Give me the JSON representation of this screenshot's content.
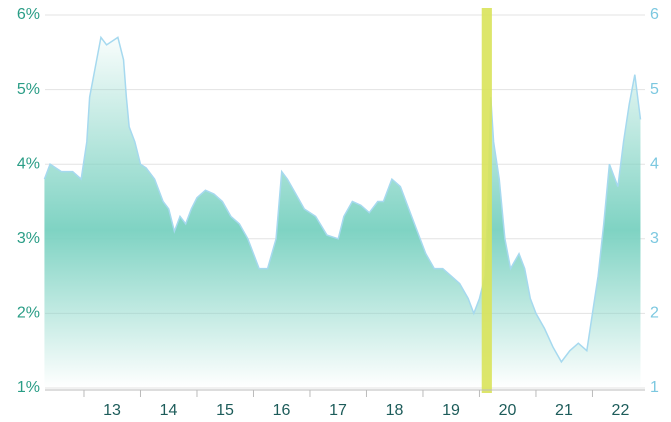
{
  "chart_data": {
    "type": "area",
    "x": [
      2012.3,
      2012.4,
      2012.6,
      2012.8,
      2012.95,
      2013.05,
      2013.1,
      2013.2,
      2013.3,
      2013.4,
      2013.5,
      2013.6,
      2013.7,
      2013.75,
      2013.8,
      2013.9,
      2014.0,
      2014.1,
      2014.25,
      2014.4,
      2014.5,
      2014.6,
      2014.7,
      2014.8,
      2014.9,
      2015.0,
      2015.15,
      2015.3,
      2015.45,
      2015.6,
      2015.75,
      2015.9,
      2016.0,
      2016.1,
      2016.25,
      2016.4,
      2016.5,
      2016.6,
      2016.75,
      2016.9,
      2017.1,
      2017.3,
      2017.5,
      2017.6,
      2017.75,
      2017.9,
      2018.05,
      2018.2,
      2018.3,
      2018.45,
      2018.6,
      2018.75,
      2018.9,
      2019.05,
      2019.2,
      2019.35,
      2019.5,
      2019.65,
      2019.8,
      2019.9,
      2020.0,
      2020.1,
      2020.15,
      2020.2,
      2020.25,
      2020.35,
      2020.45,
      2020.55,
      2020.7,
      2020.8,
      2020.9,
      2021.0,
      2021.15,
      2021.3,
      2021.45,
      2021.6,
      2021.75,
      2021.9,
      2022.0,
      2022.1,
      2022.2,
      2022.3,
      2022.45,
      2022.55,
      2022.65,
      2022.75,
      2022.85
    ],
    "values": [
      3.8,
      4.0,
      3.9,
      3.9,
      3.8,
      4.3,
      4.9,
      5.3,
      5.7,
      5.6,
      5.65,
      5.7,
      5.4,
      4.9,
      4.5,
      4.3,
      4.0,
      3.95,
      3.8,
      3.5,
      3.4,
      3.1,
      3.3,
      3.2,
      3.4,
      3.55,
      3.65,
      3.6,
      3.5,
      3.3,
      3.2,
      3.0,
      2.8,
      2.6,
      2.6,
      3.0,
      3.9,
      3.8,
      3.6,
      3.4,
      3.3,
      3.05,
      3.0,
      3.3,
      3.5,
      3.45,
      3.35,
      3.5,
      3.5,
      3.8,
      3.7,
      3.4,
      3.1,
      2.8,
      2.6,
      2.6,
      2.5,
      2.4,
      2.2,
      2.0,
      2.2,
      2.5,
      3.5,
      4.9,
      4.3,
      3.8,
      3.0,
      2.6,
      2.8,
      2.6,
      2.2,
      2.0,
      1.8,
      1.55,
      1.35,
      1.5,
      1.6,
      1.5,
      2.0,
      2.5,
      3.2,
      4.0,
      3.7,
      4.3,
      4.8,
      5.2,
      4.6
    ],
    "color": "#7fd3c3",
    "line_color": "#a6d9ef",
    "highlight": [
      2020.04,
      2020.22
    ],
    "highlight_color": "#d9e35a",
    "xlim": [
      2012.31,
      2022.93
    ],
    "xticks": [
      {
        "value": 2013,
        "label": "13"
      },
      {
        "value": 2014,
        "label": "14"
      },
      {
        "value": 2015,
        "label": "15"
      },
      {
        "value": 2016,
        "label": "16"
      },
      {
        "value": 2017,
        "label": "17"
      },
      {
        "value": 2018,
        "label": "18"
      },
      {
        "value": 2019,
        "label": "19"
      },
      {
        "value": 2020,
        "label": "20"
      },
      {
        "value": 2021,
        "label": "21"
      },
      {
        "value": 2022,
        "label": "22"
      }
    ],
    "ylim": [
      1,
      6
    ],
    "yticks": [
      {
        "value": 1,
        "label": "1%"
      },
      {
        "value": 2,
        "label": "2%"
      },
      {
        "value": 3,
        "label": "3%"
      },
      {
        "value": 4,
        "label": "4%"
      },
      {
        "value": 5,
        "label": "5%"
      },
      {
        "value": 6,
        "label": "6%"
      }
    ],
    "y2lim": [
      1,
      6
    ],
    "y2ticks": [
      1,
      2,
      3,
      4,
      5,
      6
    ],
    "grid": true
  }
}
